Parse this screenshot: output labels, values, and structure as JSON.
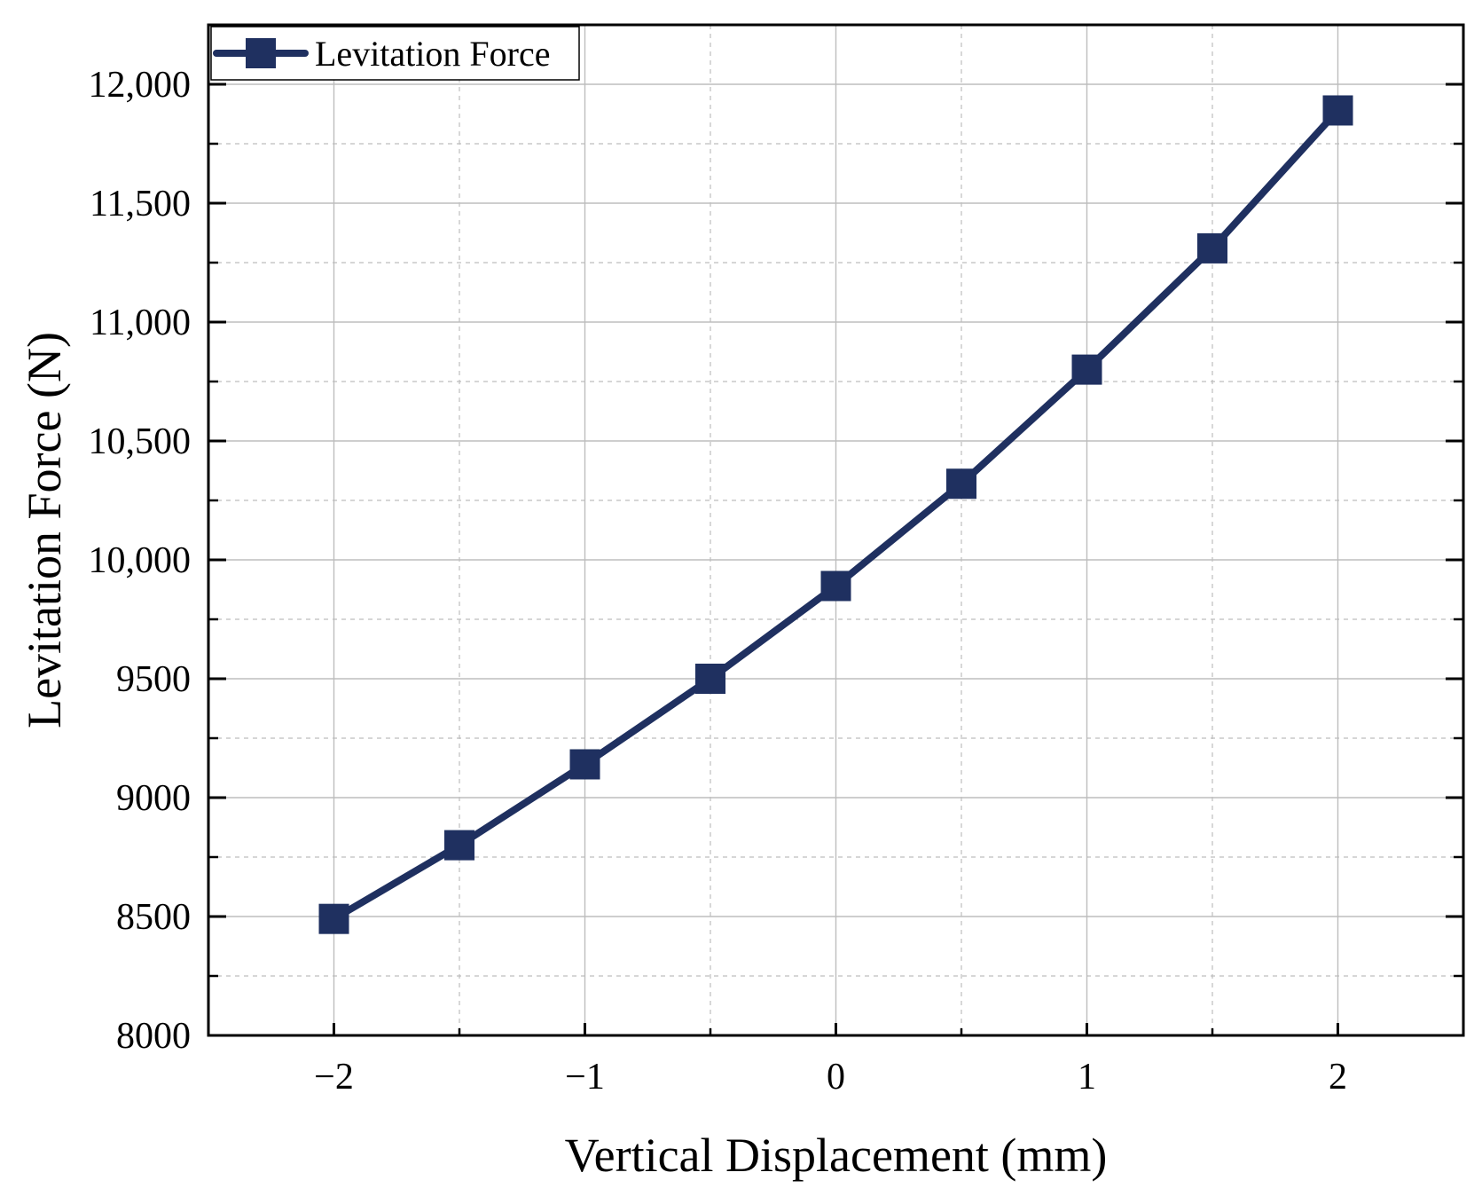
{
  "chart_data": {
    "type": "line",
    "title": "",
    "xlabel": "Vertical Displacement (mm)",
    "ylabel": "Levitation Force (N)",
    "xlim": [
      -2.5,
      2.5
    ],
    "ylim": [
      8000,
      12250
    ],
    "x_ticks": [
      -2,
      -1,
      0,
      1,
      2
    ],
    "x_tick_labels": [
      "−2",
      "−1",
      "0",
      "1",
      "2"
    ],
    "y_ticks": [
      8000,
      8500,
      9000,
      9500,
      10000,
      10500,
      11000,
      11500,
      12000
    ],
    "y_tick_labels": [
      "8000",
      "8500",
      "9000",
      "9500",
      "10,000",
      "10,500",
      "11,000",
      "11,500",
      "12,000"
    ],
    "grid": true,
    "legend_position": "top-left",
    "series": [
      {
        "name": "Levitation Force",
        "color": "#1f3060",
        "marker": "square",
        "x": [
          -2,
          -1.5,
          -1,
          -0.5,
          0,
          0.5,
          1,
          1.5,
          2
        ],
        "values": [
          8490,
          8800,
          9140,
          9500,
          9890,
          10320,
          10800,
          11310,
          11890
        ]
      }
    ]
  }
}
